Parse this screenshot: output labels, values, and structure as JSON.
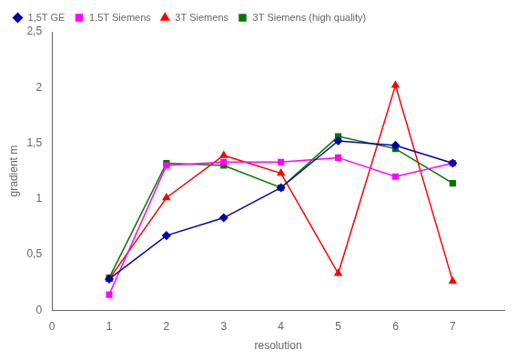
{
  "chart_data": {
    "type": "line",
    "x_label": "resolution",
    "y_label": "gradient m",
    "x": [
      1,
      2,
      3,
      4,
      5,
      6,
      7
    ],
    "series": [
      {
        "name": "1,5T GE",
        "color": "#0000AA",
        "marker": "diamond",
        "values": [
          0.28,
          0.67,
          0.83,
          1.1,
          1.52,
          1.48,
          1.32
        ]
      },
      {
        "name": "1.5T Siemens",
        "color": "#FF00FF",
        "marker": "square",
        "values": [
          0.14,
          1.3,
          1.33,
          1.33,
          1.37,
          1.2,
          1.32
        ]
      },
      {
        "name": "3T Siemens",
        "color": "#FF0000",
        "marker": "triangle",
        "values": [
          0.28,
          1.01,
          1.39,
          1.23,
          0.33,
          2.02,
          0.26
        ]
      },
      {
        "name": "3T Siemens (high quality)",
        "color": "#007700",
        "marker": "square",
        "values": [
          0.29,
          1.32,
          1.3,
          1.1,
          1.56,
          1.45,
          1.14
        ]
      }
    ],
    "xlim": [
      0,
      7.9
    ],
    "xticks": [
      0,
      1,
      2,
      3,
      4,
      5,
      6,
      7
    ],
    "ylim": [
      0,
      2.5
    ],
    "yticks": [
      0,
      {
        "value": 0.5,
        "label": "0,5"
      },
      1,
      {
        "value": 1.5,
        "label": "1,5"
      },
      2,
      {
        "value": 2.5,
        "label": "2,5"
      }
    ],
    "grid": false,
    "legend": "upper left"
  }
}
